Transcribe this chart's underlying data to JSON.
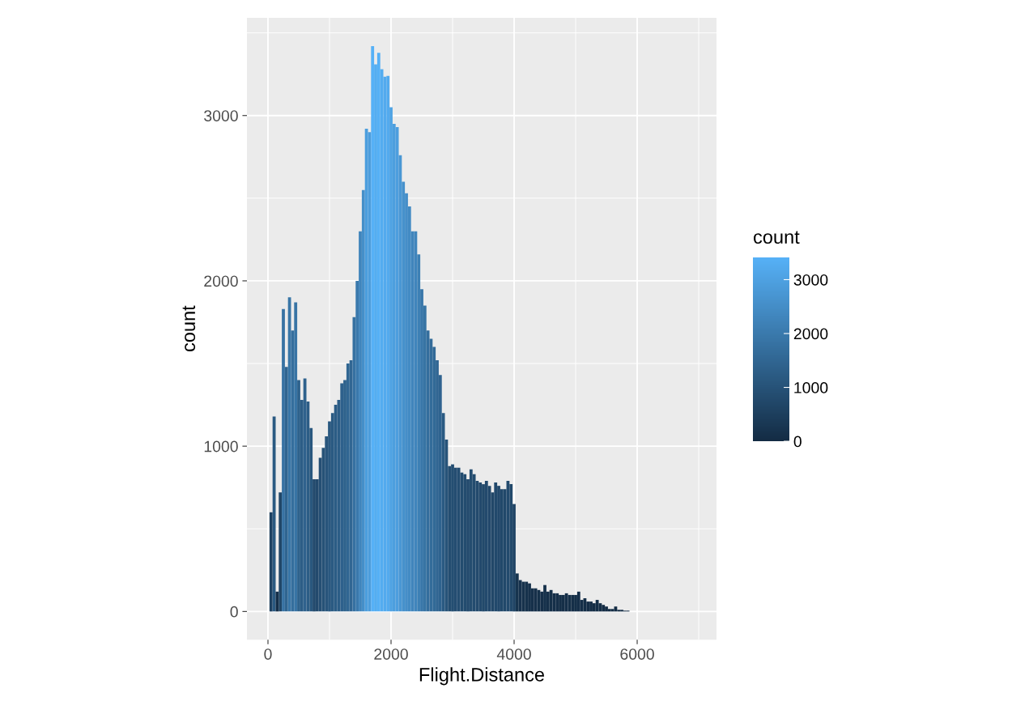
{
  "chart_data": {
    "type": "histogram",
    "xlabel": "Flight.Distance",
    "ylabel": "count",
    "clabel": "count",
    "bins": [
      25,
      75,
      125,
      175,
      225,
      275,
      325,
      375,
      425,
      475,
      525,
      575,
      625,
      675,
      725,
      775,
      825,
      875,
      925,
      975,
      1025,
      1075,
      1125,
      1175,
      1225,
      1275,
      1325,
      1375,
      1425,
      1475,
      1525,
      1575,
      1625,
      1675,
      1725,
      1775,
      1825,
      1875,
      1925,
      1975,
      2025,
      2075,
      2125,
      2175,
      2225,
      2275,
      2325,
      2375,
      2425,
      2475,
      2525,
      2575,
      2625,
      2675,
      2725,
      2775,
      2825,
      2875,
      2925,
      2975,
      3025,
      3075,
      3125,
      3175,
      3225,
      3275,
      3325,
      3375,
      3425,
      3475,
      3525,
      3575,
      3625,
      3675,
      3725,
      3775,
      3825,
      3875,
      3925,
      3975,
      4025,
      4075,
      4125,
      4175,
      4225,
      4275,
      4325,
      4375,
      4425,
      4475,
      4525,
      4575,
      4625,
      4675,
      4725,
      4775,
      4825,
      4875,
      4925,
      4975,
      5025,
      5075,
      5125,
      5175,
      5225,
      5275,
      5325,
      5375,
      5425,
      5475,
      5525,
      5575,
      5625,
      5675,
      5725,
      5775,
      5825,
      5875
    ],
    "values": [
      600,
      1180,
      120,
      720,
      1830,
      1480,
      1900,
      1700,
      1870,
      1400,
      1280,
      1410,
      1270,
      1110,
      800,
      800,
      930,
      990,
      1060,
      1150,
      1200,
      1250,
      1280,
      1380,
      1400,
      1500,
      1520,
      1780,
      2000,
      2300,
      2550,
      2920,
      2900,
      3420,
      3310,
      3380,
      3280,
      3235,
      3240,
      3050,
      2950,
      2930,
      2760,
      2600,
      2530,
      2450,
      2300,
      2300,
      2160,
      1950,
      1850,
      1700,
      1650,
      1600,
      1520,
      1430,
      1200,
      1040,
      880,
      890,
      870,
      870,
      840,
      830,
      800,
      860,
      830,
      790,
      780,
      770,
      790,
      760,
      720,
      780,
      760,
      740,
      740,
      790,
      770,
      650,
      230,
      190,
      180,
      180,
      170,
      140,
      140,
      130,
      120,
      160,
      120,
      130,
      110,
      110,
      100,
      100,
      110,
      100,
      100,
      100,
      120,
      70,
      80,
      60,
      60,
      50,
      70,
      50,
      40,
      30,
      15,
      15,
      30,
      10,
      10,
      5,
      5
    ],
    "xlim": [
      -342,
      7289
    ],
    "xticks": [
      0,
      2000,
      4000,
      6000
    ],
    "ylim": [
      -171,
      3591
    ],
    "yticks": [
      0,
      1000,
      2000,
      3000
    ],
    "clim": [
      0,
      3420
    ],
    "cticks": [
      0,
      1000,
      2000,
      3000
    ],
    "grid": true
  }
}
